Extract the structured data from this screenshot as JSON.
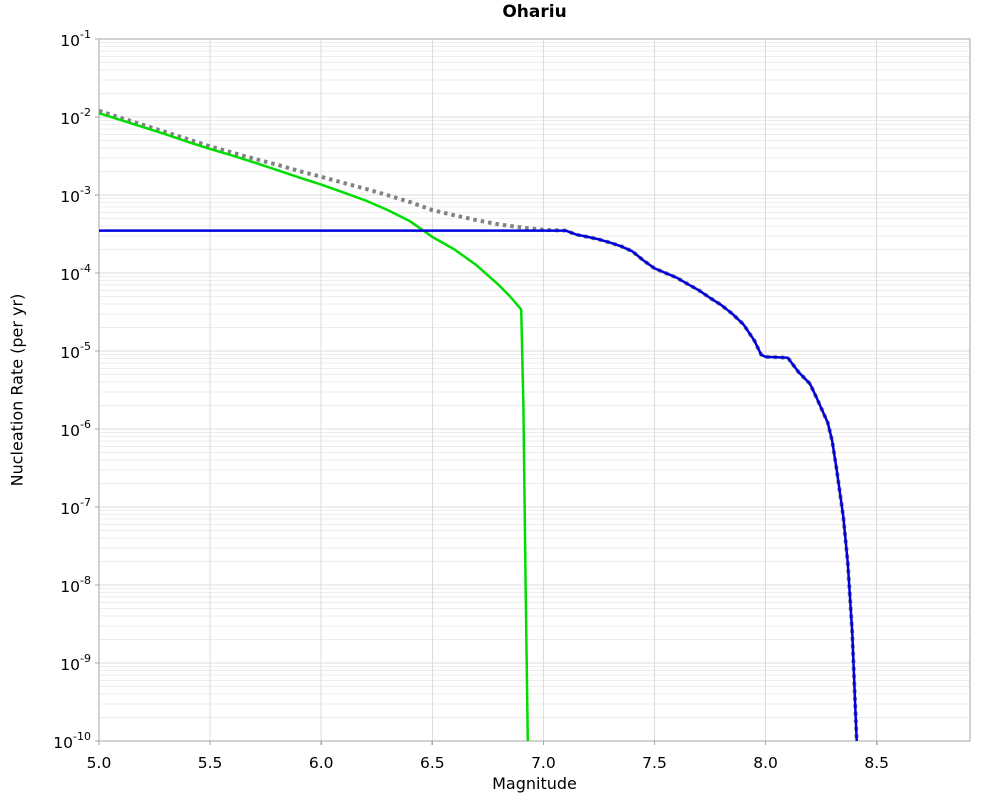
{
  "chart_data": {
    "type": "line",
    "title": "Ohariu",
    "xlabel": "Magnitude",
    "ylabel": "Nucleation Rate (per yr)",
    "xlim": [
      5.0,
      8.92
    ],
    "ylim_log10": [
      -10,
      -1
    ],
    "x_ticks": [
      5.0,
      5.5,
      6.0,
      6.5,
      7.0,
      7.5,
      8.0,
      8.5
    ],
    "y_tick_base": "10",
    "y_ticks_exp": [
      -1,
      -2,
      -3,
      -4,
      -5,
      -6,
      -7,
      -8,
      -9,
      -10
    ],
    "grid": "major+minor-log",
    "legend": "none",
    "colors": {
      "gray_dotted": "#828282",
      "green_solid": "#00dd00",
      "blue_solid": "#0000dd",
      "grid_major": "#dcdcdc",
      "grid_minor": "#ededed",
      "frame": "#a6a6a6"
    },
    "series": [
      {
        "name": "total-rate-gray-dotted",
        "style": "dotted",
        "color_key": "gray_dotted",
        "line_width": 4,
        "points": [
          [
            5.0,
            0.012
          ],
          [
            5.1,
            0.0097
          ],
          [
            5.2,
            0.0079
          ],
          [
            5.3,
            0.0064
          ],
          [
            5.4,
            0.0052
          ],
          [
            5.5,
            0.0042
          ],
          [
            5.6,
            0.0035
          ],
          [
            5.7,
            0.0029
          ],
          [
            5.8,
            0.00245
          ],
          [
            5.9,
            0.00203
          ],
          [
            6.0,
            0.00171
          ],
          [
            6.1,
            0.00143
          ],
          [
            6.2,
            0.0012
          ],
          [
            6.3,
            0.00099
          ],
          [
            6.4,
            0.00081
          ],
          [
            6.5,
            0.00064
          ],
          [
            6.6,
            0.00055
          ],
          [
            6.7,
            0.000475
          ],
          [
            6.8,
            0.00042
          ],
          [
            6.9,
            0.000384
          ],
          [
            7.0,
            0.000358
          ],
          [
            7.1,
            0.00035
          ],
          [
            7.15,
            0.00031
          ],
          [
            7.2,
            0.00029
          ],
          [
            7.25,
            0.00027
          ],
          [
            7.3,
            0.000245
          ],
          [
            7.35,
            0.00022
          ],
          [
            7.4,
            0.00019
          ],
          [
            7.45,
            0.000145
          ],
          [
            7.5,
            0.000115
          ],
          [
            7.55,
            0.0001
          ],
          [
            7.6,
            8.7e-05
          ],
          [
            7.65,
            7.2e-05
          ],
          [
            7.7,
            6e-05
          ],
          [
            7.75,
            4.8e-05
          ],
          [
            7.8,
            3.9e-05
          ],
          [
            7.85,
            3e-05
          ],
          [
            7.9,
            2.2e-05
          ],
          [
            7.95,
            1.35e-05
          ],
          [
            7.98,
            9e-06
          ],
          [
            8.0,
            8.4e-06
          ],
          [
            8.05,
            8.3e-06
          ],
          [
            8.1,
            8.2e-06
          ],
          [
            8.15,
            5.3e-06
          ],
          [
            8.2,
            3.8e-06
          ],
          [
            8.23,
            2.5e-06
          ],
          [
            8.28,
            1.2e-06
          ],
          [
            8.3,
            7e-07
          ],
          [
            8.32,
            3e-07
          ],
          [
            8.35,
            7.5e-08
          ],
          [
            8.37,
            1.9e-08
          ],
          [
            8.39,
            2.5e-09
          ],
          [
            8.41,
            1e-10
          ]
        ]
      },
      {
        "name": "sub-seismogenic-rate-green",
        "style": "solid",
        "color_key": "green_solid",
        "line_width": 2.5,
        "points": [
          [
            5.0,
            0.0112
          ],
          [
            5.1,
            0.0091
          ],
          [
            5.2,
            0.0074
          ],
          [
            5.3,
            0.006
          ],
          [
            5.4,
            0.0048
          ],
          [
            5.5,
            0.0039
          ],
          [
            5.6,
            0.0032
          ],
          [
            5.7,
            0.0026
          ],
          [
            5.8,
            0.0021
          ],
          [
            5.9,
            0.00168
          ],
          [
            6.0,
            0.00136
          ],
          [
            6.1,
            0.00108
          ],
          [
            6.2,
            0.00085
          ],
          [
            6.3,
            0.00064
          ],
          [
            6.4,
            0.00046
          ],
          [
            6.5,
            0.00029
          ],
          [
            6.6,
            0.0002
          ],
          [
            6.7,
            0.000125
          ],
          [
            6.8,
            7e-05
          ],
          [
            6.85,
            5e-05
          ],
          [
            6.9,
            3.4e-05
          ],
          [
            6.91,
            2e-06
          ],
          [
            6.92,
            1e-08
          ],
          [
            6.93,
            1e-10
          ]
        ]
      },
      {
        "name": "supra-seismogenic-rate-blue",
        "style": "solid",
        "color_key": "blue_solid",
        "line_width": 2.5,
        "points": [
          [
            5.0,
            0.00035
          ],
          [
            7.1,
            0.00035
          ],
          [
            7.15,
            0.00031
          ],
          [
            7.2,
            0.00029
          ],
          [
            7.25,
            0.00027
          ],
          [
            7.3,
            0.000245
          ],
          [
            7.35,
            0.00022
          ],
          [
            7.4,
            0.00019
          ],
          [
            7.45,
            0.000145
          ],
          [
            7.5,
            0.000115
          ],
          [
            7.55,
            0.0001
          ],
          [
            7.6,
            8.7e-05
          ],
          [
            7.65,
            7.2e-05
          ],
          [
            7.7,
            6e-05
          ],
          [
            7.75,
            4.8e-05
          ],
          [
            7.8,
            3.9e-05
          ],
          [
            7.85,
            3e-05
          ],
          [
            7.9,
            2.2e-05
          ],
          [
            7.95,
            1.35e-05
          ],
          [
            7.98,
            9e-06
          ],
          [
            8.0,
            8.4e-06
          ],
          [
            8.05,
            8.3e-06
          ],
          [
            8.1,
            8.2e-06
          ],
          [
            8.15,
            5.3e-06
          ],
          [
            8.2,
            3.8e-06
          ],
          [
            8.23,
            2.5e-06
          ],
          [
            8.28,
            1.2e-06
          ],
          [
            8.3,
            7e-07
          ],
          [
            8.32,
            3e-07
          ],
          [
            8.35,
            7.5e-08
          ],
          [
            8.37,
            1.9e-08
          ],
          [
            8.39,
            2.5e-09
          ],
          [
            8.41,
            1e-10
          ]
        ]
      }
    ]
  }
}
